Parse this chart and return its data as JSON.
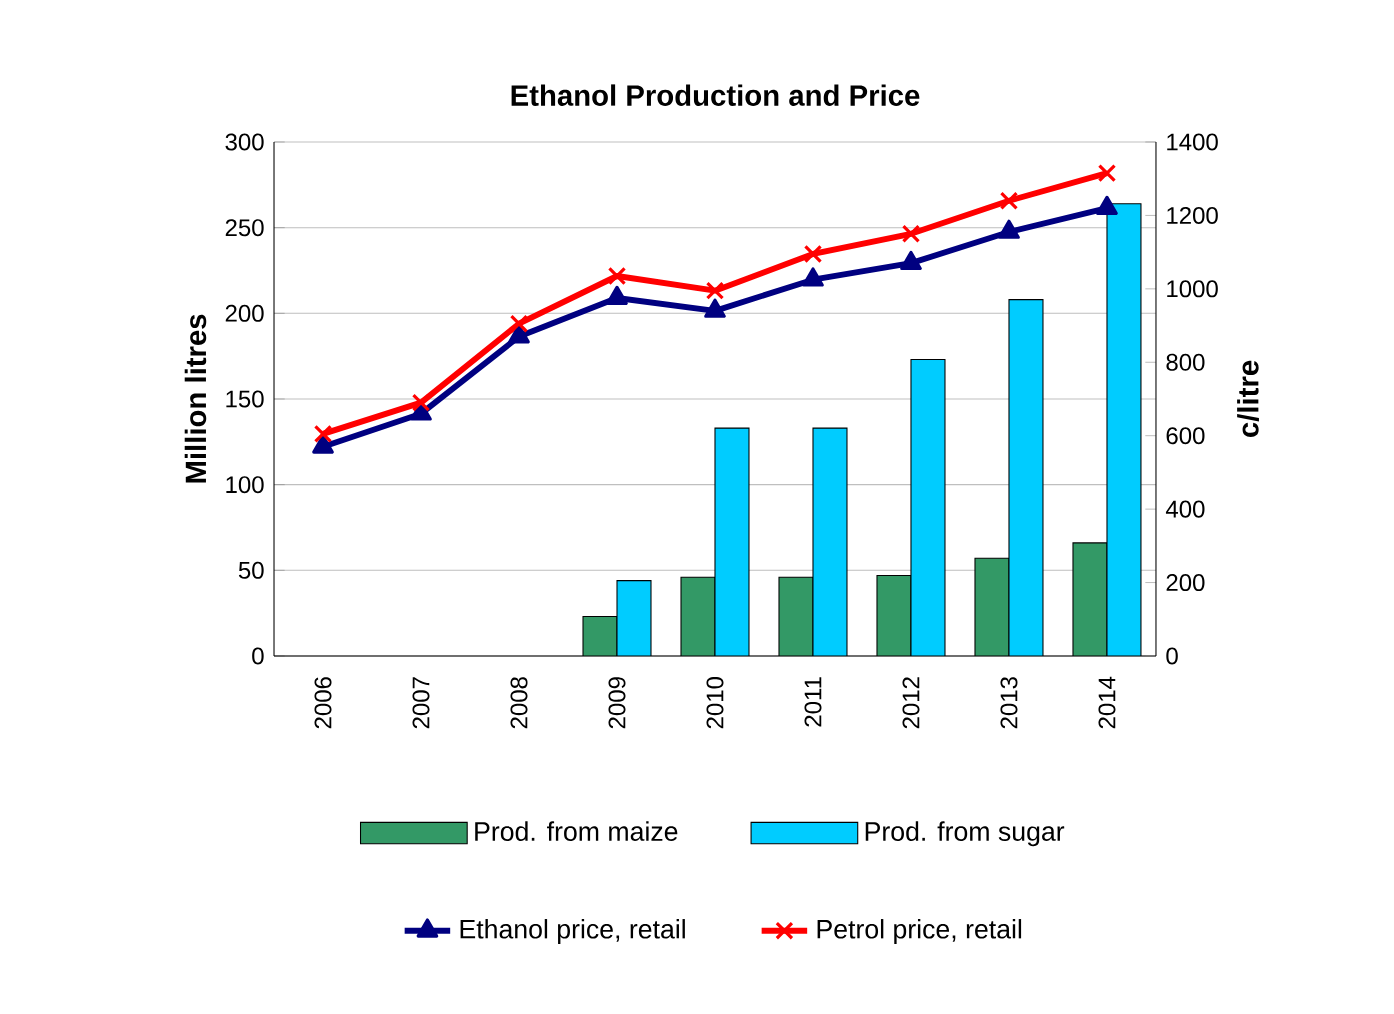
{
  "chart_data": {
    "type": "bar",
    "title": "Ethanol Production and Price",
    "ylabel": "Million litres",
    "y2label": "c/litre",
    "categories": [
      "2006",
      "2007",
      "2008",
      "2009",
      "2010",
      "2011",
      "2012",
      "2013",
      "2014"
    ],
    "series": [
      {
        "name": "Prod. from maize",
        "color": "#339966",
        "values": [
          null,
          null,
          null,
          23,
          46,
          46,
          47,
          57,
          66
        ]
      },
      {
        "name": "Prod. from sugar",
        "color": "#00ccff",
        "values": [
          null,
          null,
          null,
          44,
          133,
          133,
          173,
          208,
          264
        ]
      },
      {
        "name": "Ethanol price, retail",
        "type": "line",
        "axis": "y2",
        "marker": "triangle",
        "color": "#000080",
        "values": [
          570,
          660,
          870,
          975,
          940,
          1025,
          1070,
          1155,
          1220
        ]
      },
      {
        "name": "Petrol price, retail",
        "type": "line",
        "axis": "y2",
        "marker": "cross",
        "color": "#ff0000",
        "values": [
          605,
          690,
          905,
          1035,
          995,
          1095,
          1150,
          1240,
          1315
        ]
      }
    ],
    "ylim": [
      0,
      300
    ],
    "yticks": [
      0,
      50,
      100,
      150,
      200,
      250,
      300
    ],
    "y2lim": [
      0,
      1400
    ],
    "y2ticks": [
      0,
      200,
      400,
      600,
      800,
      1000,
      1200,
      1400
    ],
    "grid": "y",
    "legend": "bottom"
  }
}
